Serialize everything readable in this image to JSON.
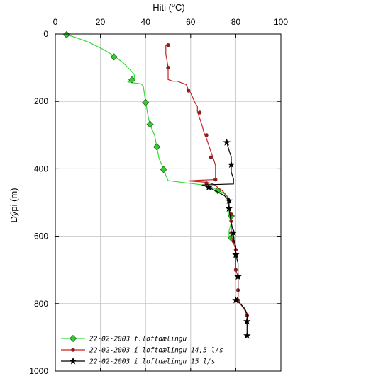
{
  "chart_data": {
    "type": "line",
    "title": "",
    "xlabel": "Hiti (°C)",
    "xlabel_parts": {
      "main": "Hiti (",
      "sup": "o",
      "unit": "C)"
    },
    "ylabel": "Dýpi (m)",
    "xlim": [
      0,
      100
    ],
    "ylim": [
      1000,
      0
    ],
    "x_ticks": [
      0,
      20,
      40,
      60,
      80,
      100
    ],
    "y_ticks": [
      0,
      200,
      400,
      600,
      800,
      1000
    ],
    "x_axis_position": "top",
    "y_inverted": true,
    "grid": true,
    "legend_position": "bottom-left",
    "series": [
      {
        "name": "22-02-2003 f.loftdælingu",
        "color": "#33dd33",
        "marker": "diamond",
        "marker_fill": "#33cc33",
        "line": [
          [
            4,
            0
          ],
          [
            9,
            10
          ],
          [
            15,
            25
          ],
          [
            21,
            45
          ],
          [
            26,
            65
          ],
          [
            30,
            85
          ],
          [
            33,
            105
          ],
          [
            35,
            120
          ],
          [
            35,
            135
          ],
          [
            32,
            142
          ],
          [
            38,
            148
          ],
          [
            39,
            155
          ],
          [
            40,
            200
          ],
          [
            41,
            240
          ],
          [
            42,
            270
          ],
          [
            44,
            300
          ],
          [
            45,
            335
          ],
          [
            46,
            370
          ],
          [
            48,
            400
          ],
          [
            49,
            420
          ],
          [
            50,
            435
          ],
          [
            62,
            445
          ],
          [
            68,
            450
          ],
          [
            71,
            460
          ],
          [
            72,
            465
          ],
          [
            74,
            470
          ],
          [
            76,
            480
          ],
          [
            77,
            510
          ],
          [
            77,
            520
          ],
          [
            77,
            540
          ],
          [
            78,
            560
          ],
          [
            77,
            585
          ],
          [
            77,
            600
          ],
          [
            78,
            605
          ]
        ],
        "markers": [
          [
            5,
            2
          ],
          [
            26,
            68
          ],
          [
            34,
            136
          ],
          [
            40,
            203
          ],
          [
            42,
            268
          ],
          [
            45,
            335
          ],
          [
            48,
            402
          ],
          [
            72,
            465
          ],
          [
            78,
            540
          ],
          [
            78,
            605
          ]
        ]
      },
      {
        "name": "22-02-2003 í loftdælingu 14,5 l/s",
        "color": "#cc2222",
        "marker": "circle",
        "marker_fill": "#882222",
        "line": [
          [
            49,
            32
          ],
          [
            49,
            60
          ],
          [
            50,
            98
          ],
          [
            50,
            135
          ],
          [
            52,
            140
          ],
          [
            54,
            140
          ],
          [
            58,
            150
          ],
          [
            59,
            165
          ],
          [
            60,
            175
          ],
          [
            61,
            190
          ],
          [
            62,
            205
          ],
          [
            63,
            215
          ],
          [
            63,
            230
          ],
          [
            64,
            250
          ],
          [
            65,
            270
          ],
          [
            66,
            295
          ],
          [
            67,
            310
          ],
          [
            68,
            330
          ],
          [
            69,
            350
          ],
          [
            70,
            368
          ],
          [
            71,
            390
          ],
          [
            71,
            432
          ],
          [
            63,
            434
          ],
          [
            59,
            436
          ],
          [
            67,
            440
          ],
          [
            70,
            445
          ],
          [
            72,
            455
          ],
          [
            74,
            465
          ],
          [
            76,
            480
          ],
          [
            77,
            495
          ],
          [
            77,
            520
          ],
          [
            78,
            540
          ],
          [
            78,
            560
          ],
          [
            78,
            580
          ],
          [
            78,
            600
          ],
          [
            79,
            620
          ],
          [
            80,
            640
          ],
          [
            80,
            660
          ],
          [
            80,
            680
          ],
          [
            80,
            700
          ],
          [
            81,
            720
          ],
          [
            81,
            750
          ],
          [
            81,
            770
          ],
          [
            81,
            790
          ],
          [
            82,
            800
          ],
          [
            83,
            810
          ],
          [
            84,
            820
          ],
          [
            85,
            835
          ],
          [
            85,
            850
          ]
        ],
        "markers": [
          [
            50,
            33
          ],
          [
            50,
            100
          ],
          [
            59,
            168
          ],
          [
            64,
            233
          ],
          [
            67,
            300
          ],
          [
            69,
            366
          ],
          [
            71,
            432
          ],
          [
            67,
            443
          ],
          [
            77,
            495
          ],
          [
            78,
            535
          ],
          [
            78,
            555
          ],
          [
            78,
            590
          ],
          [
            79,
            615
          ],
          [
            80,
            640
          ],
          [
            80,
            660
          ],
          [
            80,
            700
          ],
          [
            81,
            720
          ],
          [
            81,
            760
          ],
          [
            81,
            790
          ],
          [
            85,
            835
          ]
        ]
      },
      {
        "name": "22-02-2003 í loftdælingu 15 l/s",
        "color": "#000000",
        "marker": "star",
        "marker_fill": "#000000",
        "line": [
          [
            76,
            322
          ],
          [
            77,
            345
          ],
          [
            78,
            365
          ],
          [
            78,
            390
          ],
          [
            78,
            410
          ],
          [
            79,
            430
          ],
          [
            79,
            445
          ],
          [
            65,
            448
          ],
          [
            68,
            455
          ],
          [
            71,
            465
          ],
          [
            75,
            480
          ],
          [
            77,
            495
          ],
          [
            77,
            520
          ],
          [
            78,
            560
          ],
          [
            79,
            590
          ],
          [
            79,
            610
          ],
          [
            80,
            630
          ],
          [
            80,
            655
          ],
          [
            81,
            680
          ],
          [
            81,
            700
          ],
          [
            81,
            720
          ],
          [
            81,
            740
          ],
          [
            81,
            760
          ],
          [
            81,
            780
          ],
          [
            80,
            790
          ],
          [
            82,
            800
          ],
          [
            84,
            815
          ],
          [
            85,
            830
          ],
          [
            85,
            850
          ],
          [
            85,
            870
          ],
          [
            85,
            895
          ]
        ],
        "markers": [
          [
            76,
            322
          ],
          [
            78,
            388
          ],
          [
            68,
            455
          ],
          [
            77,
            495
          ],
          [
            77,
            518
          ],
          [
            79,
            590
          ],
          [
            80,
            655
          ],
          [
            81,
            720
          ],
          [
            80,
            790
          ],
          [
            85,
            853
          ],
          [
            85,
            895
          ]
        ]
      }
    ]
  }
}
